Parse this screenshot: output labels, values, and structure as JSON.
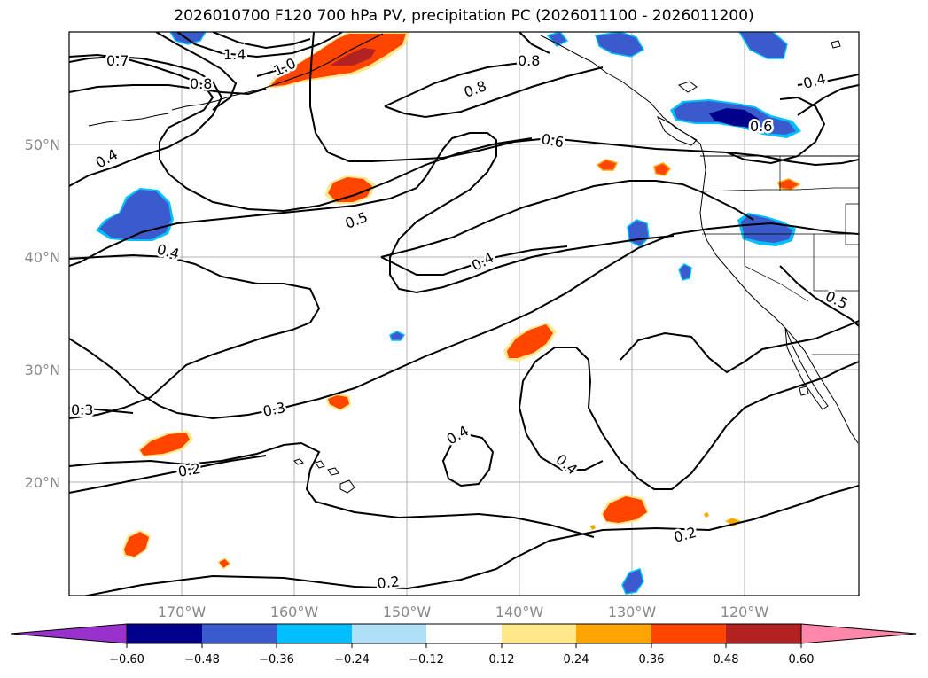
{
  "title": "2026010700 F120 700 hPa PV, precipitation PC (2026011100 - 2026011200)",
  "lat_labels": [
    "50°N",
    "40°N",
    "30°N",
    "20°N"
  ],
  "lon_labels": [
    "170°W",
    "160°W",
    "150°W",
    "140°W",
    "130°W",
    "120°W"
  ],
  "contour_labels": [
    "1.4",
    "1.0",
    "0.7",
    "0.8",
    "0.8",
    "0.8",
    "0.6",
    "0.6",
    "0.4",
    "0.4",
    "0.5",
    "0.4",
    "0.4",
    "0.5",
    "0.3",
    "0.3",
    "0.2",
    "0.4",
    "0.4",
    "0.2",
    "0.2"
  ],
  "colorbar": {
    "tick_labels": [
      "−0.60",
      "−0.48",
      "−0.36",
      "−0.24",
      "−0.12",
      "0.12",
      "0.24",
      "0.36",
      "0.48",
      "0.60"
    ],
    "colors": {
      "lt_neg060": "#9932CC",
      "neg060_neg048": "#00008B",
      "neg048_neg036": "#3B5BCC",
      "neg036_neg024": "#00BFFF",
      "neg024_neg012": "#B0E0F8",
      "neg012_012": "#FFFFFF",
      "p012_p024": "#FFE88A",
      "p024_p036": "#FFA500",
      "p036_p048": "#FF4500",
      "p048_p060": "#B22222",
      "gt_p060": "#FF88AA"
    }
  }
}
